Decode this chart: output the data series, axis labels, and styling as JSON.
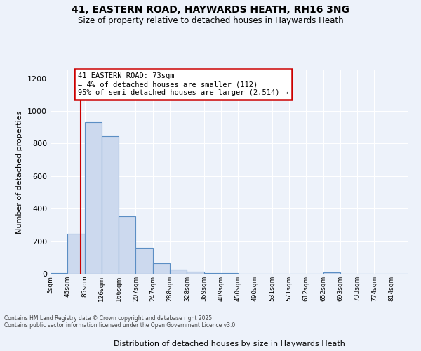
{
  "title1": "41, EASTERN ROAD, HAYWARDS HEATH, RH16 3NG",
  "title2": "Size of property relative to detached houses in Haywards Heath",
  "xlabel": "Distribution of detached houses by size in Haywards Heath",
  "ylabel": "Number of detached properties",
  "bin_labels": [
    "5sqm",
    "45sqm",
    "85sqm",
    "126sqm",
    "166sqm",
    "207sqm",
    "247sqm",
    "288sqm",
    "328sqm",
    "369sqm",
    "409sqm",
    "450sqm",
    "490sqm",
    "531sqm",
    "571sqm",
    "612sqm",
    "652sqm",
    "693sqm",
    "733sqm",
    "774sqm",
    "814sqm"
  ],
  "bar_values": [
    5,
    245,
    930,
    845,
    355,
    160,
    65,
    28,
    12,
    5,
    5,
    0,
    0,
    0,
    0,
    0,
    8,
    0,
    0,
    0,
    0
  ],
  "bar_color": "#ccd9ee",
  "bar_edge_color": "#5b8ec4",
  "ylim": [
    0,
    1250
  ],
  "yticks": [
    0,
    200,
    400,
    600,
    800,
    1000,
    1200
  ],
  "annotation_text": "41 EASTERN ROAD: 73sqm\n← 4% of detached houses are smaller (112)\n95% of semi-detached houses are larger (2,514) →",
  "annotation_box_color": "#ffffff",
  "annotation_box_edge": "#cc0000",
  "property_line_x": 1.78,
  "footer1": "Contains HM Land Registry data © Crown copyright and database right 2025.",
  "footer2": "Contains public sector information licensed under the Open Government Licence v3.0.",
  "background_color": "#edf2fa",
  "grid_color": "#ffffff"
}
